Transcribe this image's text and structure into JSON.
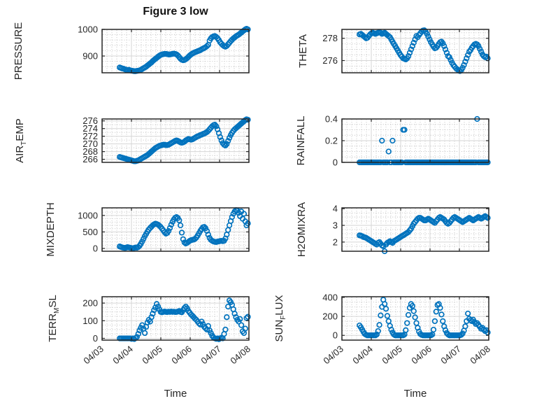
{
  "figure": {
    "title": "Figure 3 low",
    "xlabel": "Time",
    "marker_color": "#0072BD",
    "axis_color": "#262626",
    "grid_color": "#d6d6d6",
    "minor_grid_color": "#b0b0b0"
  },
  "time_axis": {
    "tick_labels": [
      "04/03",
      "04/04",
      "04/05",
      "04/06",
      "04/07",
      "04/08"
    ],
    "xlim": [
      0,
      5
    ],
    "x_start": 0.6,
    "x_step": 0.045,
    "n_points": 98
  },
  "chart_data": [
    {
      "type": "scatter",
      "name": "PRESSURE",
      "ylabel_parts": [
        {
          "t": "PRESSURE"
        }
      ],
      "yticks": [
        900,
        1000
      ],
      "ylim": [
        837,
        1000
      ],
      "yminor": 20,
      "values": [
        857,
        855,
        853,
        852,
        850,
        848,
        847,
        848,
        846,
        845,
        844,
        843,
        843,
        844,
        845,
        846,
        848,
        851,
        854,
        857,
        860,
        864,
        868,
        872,
        876,
        881,
        885,
        889,
        893,
        897,
        901,
        904,
        906,
        907,
        908,
        908,
        907,
        906,
        906,
        907,
        908,
        909,
        908,
        906,
        902,
        896,
        890,
        886,
        884,
        885,
        888,
        892,
        897,
        902,
        906,
        909,
        912,
        914,
        916,
        918,
        920,
        922,
        925,
        928,
        930,
        933,
        937,
        942,
        958,
        966,
        971,
        974,
        975,
        972,
        967,
        960,
        952,
        946,
        941,
        937,
        935,
        938,
        944,
        950,
        956,
        961,
        966,
        970,
        974,
        977,
        980,
        984,
        988,
        992,
        996,
        1000,
        1002,
        1000
      ]
    },
    {
      "type": "scatter",
      "name": "AIR_TEMP",
      "ylabel_parts": [
        {
          "t": "AIR"
        },
        {
          "t": "T",
          "sub": true
        },
        {
          "t": "EMP"
        }
      ],
      "yticks": [
        266,
        268,
        270,
        272,
        274,
        276
      ],
      "ylim": [
        265.2,
        276.5
      ],
      "yminor": 1,
      "values": [
        266.6,
        266.5,
        266.4,
        266.3,
        266.2,
        266.1,
        266.0,
        265.9,
        265.8,
        265.7,
        265.6,
        265.5,
        265.5,
        265.6,
        265.7,
        265.9,
        266.1,
        266.3,
        266.5,
        266.7,
        266.9,
        267.1,
        267.4,
        267.7,
        268.0,
        268.3,
        268.6,
        268.9,
        269.1,
        269.3,
        269.5,
        269.6,
        269.7,
        269.8,
        269.8,
        269.7,
        269.7,
        269.8,
        270.0,
        270.2,
        270.4,
        270.6,
        270.8,
        270.9,
        270.8,
        270.6,
        270.4,
        270.3,
        270.4,
        270.6,
        270.9,
        271.1,
        271.3,
        271.2,
        271.1,
        271.2,
        271.4,
        271.6,
        271.8,
        272.0,
        272.1,
        272.3,
        272.4,
        272.6,
        272.7,
        272.9,
        273.1,
        273.4,
        273.8,
        274.2,
        274.6,
        274.9,
        275.0,
        274.6,
        273.8,
        272.8,
        271.8,
        270.9,
        270.2,
        269.8,
        269.6,
        270.0,
        270.8,
        271.6,
        272.3,
        272.9,
        273.4,
        273.8,
        274.1,
        274.4,
        274.7,
        275.0,
        275.3,
        275.6,
        275.9,
        276.2,
        276.4,
        276.3
      ]
    },
    {
      "type": "scatter",
      "name": "MIXDEPTH",
      "ylabel_parts": [
        {
          "t": "MIXDEPTH"
        }
      ],
      "yticks": [
        0,
        500,
        1000
      ],
      "ylim": [
        -85,
        1230
      ],
      "yminor": 100,
      "values": [
        60,
        45,
        30,
        20,
        15,
        25,
        40,
        30,
        20,
        10,
        5,
        15,
        30,
        20,
        40,
        80,
        140,
        210,
        290,
        370,
        440,
        510,
        570,
        620,
        660,
        700,
        730,
        750,
        740,
        720,
        690,
        650,
        600,
        545,
        490,
        450,
        470,
        530,
        620,
        720,
        810,
        880,
        930,
        950,
        920,
        850,
        700,
        480,
        280,
        180,
        150,
        170,
        200,
        230,
        250,
        260,
        270,
        290,
        330,
        390,
        460,
        530,
        590,
        640,
        650,
        610,
        530,
        420,
        320,
        260,
        230,
        210,
        200,
        195,
        205,
        215,
        225,
        230,
        220,
        230,
        300,
        420,
        560,
        700,
        830,
        950,
        1050,
        1120,
        1160,
        1150,
        1080,
        980,
        1120,
        900,
        1050,
        820,
        700,
        760
      ]
    },
    {
      "type": "scatter",
      "name": "TERR_MSL",
      "ylabel_parts": [
        {
          "t": "TERR"
        },
        {
          "t": "M",
          "sub": true
        },
        {
          "t": "SL"
        }
      ],
      "yticks": [
        0,
        100,
        200
      ],
      "ylim": [
        -10,
        236
      ],
      "yminor": 25,
      "values": [
        0,
        0,
        0,
        0,
        0,
        0,
        0,
        0,
        0,
        -3,
        0,
        -4,
        2,
        8,
        25,
        45,
        60,
        75,
        55,
        30,
        65,
        90,
        105,
        95,
        120,
        140,
        160,
        175,
        195,
        180,
        165,
        150,
        148,
        150,
        152,
        150,
        149,
        151,
        150,
        152,
        150,
        151,
        149,
        150,
        152,
        155,
        150,
        148,
        160,
        172,
        180,
        170,
        155,
        145,
        135,
        128,
        120,
        112,
        105,
        95,
        85,
        78,
        95,
        80,
        65,
        58,
        50,
        70,
        45,
        30,
        15,
        5,
        0,
        -3,
        0,
        -5,
        0,
        3,
        0,
        25,
        50,
        120,
        180,
        215,
        205,
        190,
        165,
        140,
        120,
        105,
        95,
        110,
        75,
        40,
        30,
        55,
        115,
        122
      ]
    },
    {
      "type": "scatter",
      "name": "THETA",
      "ylabel_parts": [
        {
          "t": "THETA"
        }
      ],
      "yticks": [
        276,
        278
      ],
      "ylim": [
        274.9,
        278.8
      ],
      "yminor": 0.5,
      "values": [
        278.35,
        278.4,
        278.3,
        278.2,
        278.1,
        278.0,
        278.05,
        278.2,
        278.35,
        278.45,
        278.5,
        278.45,
        278.4,
        278.45,
        278.5,
        278.55,
        278.5,
        278.4,
        278.45,
        278.5,
        278.4,
        278.3,
        278.2,
        278.1,
        277.9,
        277.7,
        277.5,
        277.3,
        277.1,
        276.9,
        276.7,
        276.5,
        276.35,
        276.2,
        276.15,
        276.1,
        276.2,
        276.4,
        276.7,
        277.0,
        277.3,
        277.6,
        277.9,
        278.2,
        278.1,
        278.3,
        278.45,
        278.6,
        278.7,
        278.72,
        278.6,
        278.4,
        278.15,
        277.9,
        277.65,
        277.45,
        277.25,
        277.1,
        277.15,
        277.3,
        277.5,
        277.65,
        277.7,
        277.55,
        277.3,
        277.0,
        276.7,
        276.4,
        276.3,
        276.05,
        275.8,
        275.6,
        275.45,
        275.3,
        275.2,
        275.1,
        275.05,
        275.15,
        275.35,
        275.6,
        275.9,
        276.2,
        276.5,
        276.8,
        276.95,
        277.15,
        277.3,
        277.45,
        277.5,
        277.45,
        277.3,
        277.05,
        276.8,
        276.55,
        276.4,
        276.3,
        276.35,
        276.2
      ]
    },
    {
      "type": "scatter",
      "name": "RAINFALL",
      "ylabel_parts": [
        {
          "t": "RAINFALL"
        }
      ],
      "yticks": [
        0,
        0.2,
        0.4
      ],
      "ylim": [
        0,
        0.4
      ],
      "yminor": 0.05,
      "values": [
        0,
        0,
        0,
        0,
        0,
        0,
        0,
        0,
        0,
        0,
        0,
        0,
        0,
        0,
        0,
        0,
        0,
        0.2,
        0,
        0,
        0,
        0,
        0.1,
        0,
        0,
        0.2,
        0,
        0,
        0,
        0,
        0,
        0,
        0,
        0.3,
        0.3,
        0,
        0,
        0,
        0,
        0,
        0,
        0,
        0,
        0,
        0,
        0,
        0,
        0,
        0,
        0,
        0,
        0,
        0,
        0,
        0,
        0,
        0,
        0,
        0,
        0,
        0,
        0,
        0,
        0,
        0,
        0,
        0,
        0,
        0,
        0,
        0,
        0,
        0,
        0,
        0,
        0,
        0,
        0,
        0,
        0,
        0,
        0,
        0,
        0,
        0,
        0,
        0,
        0,
        0,
        0.4,
        0,
        0,
        0,
        0,
        0,
        0,
        0,
        0
      ]
    },
    {
      "type": "scatter",
      "name": "H2OMIXRA",
      "ylabel_parts": [
        {
          "t": "H2OMIXRA"
        }
      ],
      "yticks": [
        2,
        3,
        4
      ],
      "ylim": [
        1.45,
        4.05
      ],
      "yminor": 0.25,
      "values": [
        2.4,
        2.38,
        2.35,
        2.3,
        2.28,
        2.25,
        2.2,
        2.15,
        2.1,
        2.05,
        2.0,
        1.95,
        1.9,
        1.85,
        1.95,
        2.0,
        1.9,
        1.8,
        1.75,
        1.45,
        1.85,
        1.95,
        2.0,
        2.05,
        2.0,
        1.95,
        2.05,
        2.1,
        2.15,
        2.2,
        2.25,
        2.3,
        2.35,
        2.4,
        2.45,
        2.5,
        2.55,
        2.6,
        2.7,
        2.8,
        2.95,
        3.1,
        3.2,
        3.3,
        3.4,
        3.45,
        3.45,
        3.4,
        3.35,
        3.3,
        3.3,
        3.35,
        3.4,
        3.35,
        3.3,
        3.25,
        3.2,
        3.15,
        3.25,
        3.35,
        3.45,
        3.5,
        3.45,
        3.4,
        3.35,
        3.25,
        3.15,
        3.1,
        3.15,
        3.25,
        3.35,
        3.45,
        3.5,
        3.45,
        3.4,
        3.35,
        3.3,
        3.25,
        3.2,
        3.25,
        3.3,
        3.35,
        3.4,
        3.45,
        3.4,
        3.35,
        3.3,
        3.35,
        3.4,
        3.45,
        3.5,
        3.45,
        3.4,
        3.45,
        3.5,
        3.55,
        3.5,
        3.45
      ]
    },
    {
      "type": "scatter",
      "name": "SUN_FLUX",
      "ylabel_parts": [
        {
          "t": "SUN"
        },
        {
          "t": "F",
          "sub": true
        },
        {
          "t": "LUX"
        }
      ],
      "yticks": [
        0,
        200,
        400
      ],
      "ylim": [
        -50,
        407
      ],
      "yminor": 50,
      "values": [
        105,
        85,
        60,
        35,
        15,
        5,
        0,
        0,
        0,
        0,
        0,
        0,
        0,
        10,
        45,
        110,
        210,
        300,
        375,
        330,
        280,
        205,
        150,
        100,
        60,
        30,
        10,
        0,
        0,
        0,
        0,
        0,
        0,
        0,
        10,
        55,
        130,
        215,
        290,
        330,
        310,
        255,
        190,
        130,
        80,
        40,
        15,
        5,
        0,
        0,
        0,
        0,
        0,
        0,
        0,
        10,
        60,
        150,
        250,
        320,
        330,
        290,
        220,
        150,
        95,
        55,
        25,
        10,
        0,
        0,
        0,
        0,
        0,
        0,
        0,
        0,
        0,
        5,
        20,
        50,
        95,
        150,
        230,
        175,
        160,
        150,
        165,
        140,
        120,
        130,
        110,
        90,
        70,
        80,
        60,
        45,
        55,
        30
      ]
    }
  ]
}
